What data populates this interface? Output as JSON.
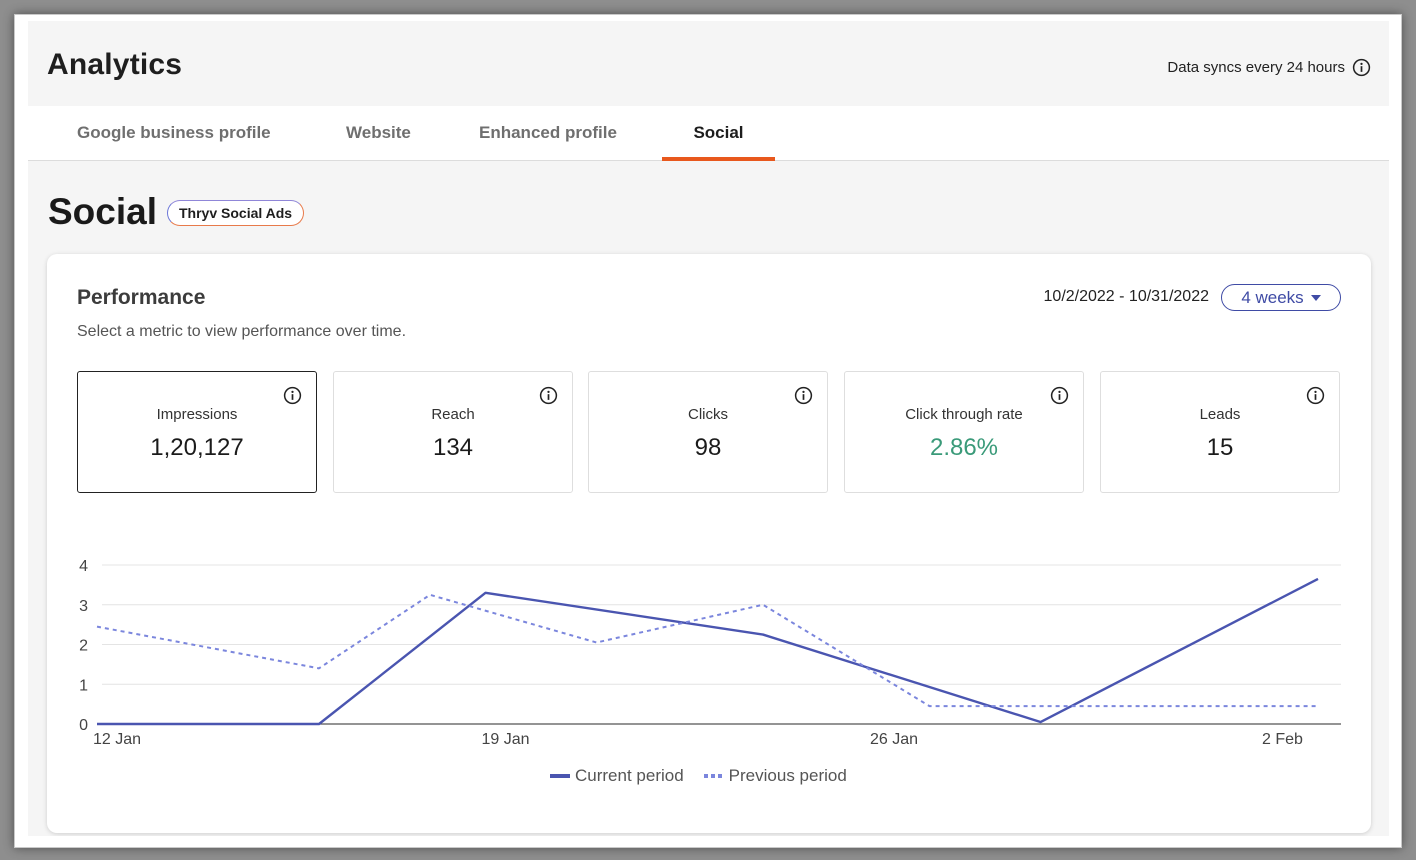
{
  "header": {
    "title": "Analytics",
    "sync_text": "Data syncs every 24 hours"
  },
  "tabs": [
    {
      "label": "Google business profile",
      "active": false
    },
    {
      "label": "Website",
      "active": false
    },
    {
      "label": "Enhanced profile",
      "active": false
    },
    {
      "label": "Social",
      "active": true
    }
  ],
  "section": {
    "title": "Social",
    "badge": "Thryv Social Ads"
  },
  "performance": {
    "title": "Performance",
    "subtitle": "Select a metric to view performance over time.",
    "date_range": "10/2/2022 - 10/31/2022",
    "period_select": "4 weeks",
    "metrics": [
      {
        "label": "Impressions",
        "value": "1,20,127",
        "selected": true
      },
      {
        "label": "Reach",
        "value": "134",
        "selected": false
      },
      {
        "label": "Clicks",
        "value": "98",
        "selected": false
      },
      {
        "label": "Click through rate",
        "value": "2.86%",
        "selected": false,
        "value_color": "#3a9a79"
      },
      {
        "label": "Leads",
        "value": "15",
        "selected": false
      }
    ]
  },
  "chart_data": {
    "type": "line",
    "title": "",
    "xlabel": "",
    "ylabel": "",
    "ylim": [
      0,
      4
    ],
    "y_ticks": [
      "0",
      "1",
      "2",
      "3",
      "4"
    ],
    "x_range": [
      "12 Jan",
      "3 Feb"
    ],
    "x_ticks": [
      {
        "label": "12 Jan",
        "date": "12 Jan"
      },
      {
        "label": "19 Jan",
        "date": "19 Jan"
      },
      {
        "label": "26 Jan",
        "date": "26 Jan"
      },
      {
        "label": "2 Feb",
        "date": "2 Feb"
      }
    ],
    "grid": true,
    "legend_position": "bottom",
    "series": [
      {
        "name": "Current period",
        "style": "solid",
        "color": "#4a55b0",
        "points": [
          {
            "x": "12 Jan",
            "y": 0
          },
          {
            "x": "16 Jan",
            "y": 0
          },
          {
            "x": "19 Jan",
            "y": 3.3
          },
          {
            "x": "24 Jan",
            "y": 2.25
          },
          {
            "x": "29 Jan",
            "y": 0.05
          },
          {
            "x": "3 Feb",
            "y": 3.65
          }
        ]
      },
      {
        "name": "Previous period",
        "style": "dashed",
        "color": "#7b86dd",
        "points": [
          {
            "x": "12 Jan",
            "y": 2.45
          },
          {
            "x": "16 Jan",
            "y": 1.4
          },
          {
            "x": "18 Jan",
            "y": 3.25
          },
          {
            "x": "21 Jan",
            "y": 2.05
          },
          {
            "x": "24 Jan",
            "y": 3.0
          },
          {
            "x": "27 Jan",
            "y": 0.45
          },
          {
            "x": "3 Feb",
            "y": 0.45
          }
        ]
      }
    ]
  }
}
